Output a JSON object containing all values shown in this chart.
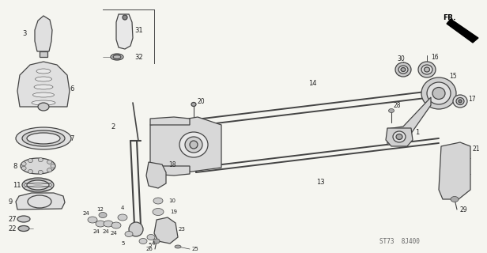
{
  "bg_color": "#f5f5f0",
  "line_color": "#444444",
  "diagram_code": "ST73  8J400",
  "figsize": [
    6.16,
    3.2
  ],
  "dpi": 100,
  "label_fs": 5.5,
  "lw_part": 0.9,
  "lw_bar": 1.4
}
